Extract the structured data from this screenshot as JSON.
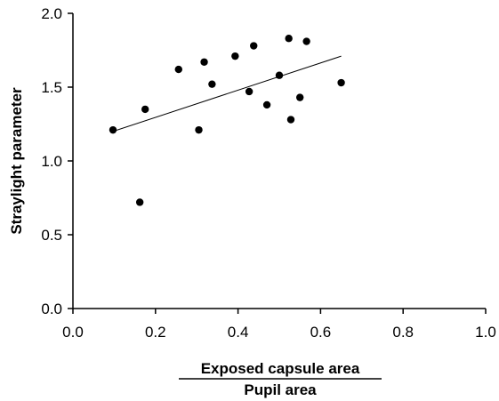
{
  "chart_data": {
    "type": "scatter",
    "xlabel": {
      "numerator": "Exposed capsule area",
      "denominator": "Pupil area"
    },
    "ylabel": "Straylight parameter",
    "xlim": [
      0.0,
      1.0
    ],
    "ylim": [
      0.0,
      2.0
    ],
    "xticks": [
      0.0,
      0.2,
      0.4,
      0.6,
      0.8,
      1.0
    ],
    "yticks": [
      0.0,
      0.5,
      1.0,
      1.5,
      2.0
    ],
    "xtick_labels": [
      "0.0",
      "0.2",
      "0.4",
      "0.6",
      "0.8",
      "1.0"
    ],
    "ytick_labels": [
      "0.0",
      "0.5",
      "1.0",
      "1.5",
      "2.0"
    ],
    "grid": false,
    "points": [
      {
        "x": 0.097,
        "y": 1.21
      },
      {
        "x": 0.162,
        "y": 0.72
      },
      {
        "x": 0.175,
        "y": 1.35
      },
      {
        "x": 0.256,
        "y": 1.62
      },
      {
        "x": 0.305,
        "y": 1.21
      },
      {
        "x": 0.318,
        "y": 1.67
      },
      {
        "x": 0.337,
        "y": 1.52
      },
      {
        "x": 0.393,
        "y": 1.71
      },
      {
        "x": 0.427,
        "y": 1.47
      },
      {
        "x": 0.438,
        "y": 1.78
      },
      {
        "x": 0.47,
        "y": 1.38
      },
      {
        "x": 0.5,
        "y": 1.58
      },
      {
        "x": 0.523,
        "y": 1.83
      },
      {
        "x": 0.528,
        "y": 1.28
      },
      {
        "x": 0.55,
        "y": 1.43
      },
      {
        "x": 0.566,
        "y": 1.81
      },
      {
        "x": 0.65,
        "y": 1.53
      }
    ],
    "trendline": {
      "type": "linear",
      "from": {
        "x": 0.097,
        "y": 1.2
      },
      "to": {
        "x": 0.65,
        "y": 1.71
      }
    },
    "colors": {
      "points": "#000000",
      "line": "#000000",
      "axes": "#000000"
    }
  }
}
